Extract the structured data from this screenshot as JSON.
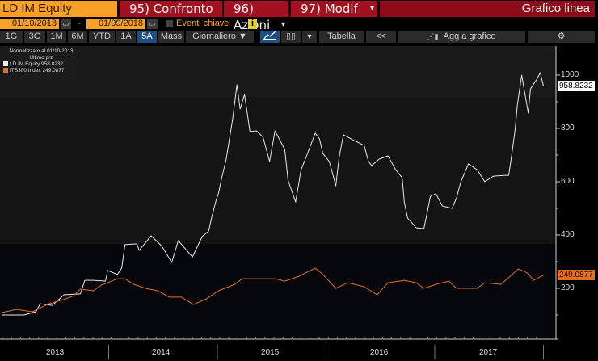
{
  "header": {
    "security": "LD IM Equity",
    "menu": [
      {
        "label": "95) Confronto"
      },
      {
        "label": "96) Azioni",
        "dropdown": true
      },
      {
        "label": "97) Modif",
        "dropdown": true
      }
    ],
    "view_title": "Grafico linea"
  },
  "range": {
    "start": "01/10/2013",
    "end": "01/09/2018",
    "separator": "-",
    "events_label": "Eventi chiave",
    "info": "i"
  },
  "toolbar": {
    "periods": [
      "1G",
      "3G",
      "1M",
      "6M",
      "YTD",
      "1A",
      "5A",
      "Mass"
    ],
    "selected_period": "5A",
    "frequency": "Giornaliero",
    "table": "Tabella",
    "collapse": "<<",
    "add": "Agg a grafico",
    "icons": [
      "line-chart-icon",
      "candlestick-icon",
      "gear-icon"
    ]
  },
  "colors": {
    "accent": "#f7a127",
    "menu_red": "#a3101f",
    "series1": "#e8e8e8",
    "series2": "#e0701f",
    "selected": "#1f4f80"
  },
  "chart_data": {
    "type": "line",
    "legend": {
      "title": "Normalizzato al 01/10/2013",
      "subtitle": "Ultimo prz",
      "placement": "top-left",
      "entries": [
        {
          "name": "LD IM Equity",
          "last": "958.8232"
        },
        {
          "name": "ITS300 Index",
          "last": "249.0877"
        }
      ]
    },
    "yticks": [
      "1000",
      "800",
      "600",
      "400",
      "200"
    ],
    "ylim": [
      0,
      1100
    ],
    "xticks": [
      "2013",
      "2014",
      "2015",
      "2016",
      "2017"
    ],
    "xlim": [
      2013,
      2018.1
    ],
    "series": [
      {
        "name": "LD IM Equity",
        "x": [
          2013.02,
          2013.22,
          2013.33,
          2013.37,
          2013.48,
          2013.59,
          2013.74,
          2013.78,
          2013.86,
          2013.97,
          2013.99,
          2014.08,
          2014.12,
          2014.15,
          2014.26,
          2014.28,
          2014.39,
          2014.49,
          2014.58,
          2014.64,
          2014.77,
          2014.86,
          2014.92,
          2014.95,
          2014.99,
          2015.01,
          2015.04,
          2015.08,
          2015.14,
          2015.18,
          2015.21,
          2015.25,
          2015.3,
          2015.36,
          2015.42,
          2015.48,
          2015.53,
          2015.62,
          2015.65,
          2015.72,
          2015.77,
          2015.83,
          2015.9,
          2015.94,
          2015.97,
          2016.03,
          2016.09,
          2016.12,
          2016.16,
          2016.27,
          2016.35,
          2016.39,
          2016.42,
          2016.49,
          2016.57,
          2016.64,
          2016.7,
          2016.72,
          2016.75,
          2016.83,
          2016.9,
          2016.96,
          2017.01,
          2017.07,
          2017.16,
          2017.2,
          2017.24,
          2017.31,
          2017.39,
          2017.46,
          2017.54,
          2017.65,
          2017.68,
          2017.71,
          2017.74,
          2017.76,
          2017.8,
          2017.86,
          2017.88,
          2017.94,
          2017.97,
          2018.0
        ],
        "values": [
          100,
          100,
          112,
          142,
          136,
          176,
          179,
          230,
          230,
          227,
          267,
          252,
          276,
          364,
          367,
          342,
          397,
          358,
          297,
          379,
          318,
          394,
          415,
          470,
          533,
          555,
          615,
          682,
          833,
          964,
          873,
          927,
          788,
          791,
          767,
          676,
          791,
          721,
          606,
          524,
          645,
          706,
          782,
          761,
          706,
          676,
          585,
          691,
          776,
          752,
          736,
          676,
          661,
          685,
          697,
          645,
          615,
          524,
          464,
          427,
          424,
          545,
          555,
          509,
          500,
          539,
          600,
          667,
          645,
          600,
          621,
          624,
          624,
          706,
          797,
          888,
          1000,
          858,
          948,
          985,
          1009,
          958.8232
        ]
      },
      {
        "name": "ITS300 Index",
        "x": [
          2013.02,
          2013.15,
          2013.3,
          2013.45,
          2013.56,
          2013.67,
          2013.74,
          2013.86,
          2013.93,
          2013.99,
          2014.08,
          2014.15,
          2014.23,
          2014.34,
          2014.45,
          2014.56,
          2014.67,
          2014.78,
          2014.9,
          2015.01,
          2015.16,
          2015.23,
          2015.38,
          2015.53,
          2015.62,
          2015.75,
          2015.9,
          2015.97,
          2016.09,
          2016.2,
          2016.35,
          2016.47,
          2016.57,
          2016.72,
          2016.83,
          2016.9,
          2017.01,
          2017.13,
          2017.2,
          2017.39,
          2017.46,
          2017.61,
          2017.77,
          2017.85,
          2017.91,
          2017.98,
          2018.0
        ],
        "values": [
          109,
          121,
          112,
          142,
          155,
          170,
          197,
          191,
          212,
          221,
          236,
          236,
          215,
          200,
          191,
          167,
          167,
          139,
          161,
          191,
          215,
          236,
          236,
          236,
          227,
          245,
          276,
          252,
          200,
          221,
          206,
          176,
          221,
          230,
          221,
          200,
          215,
          227,
          200,
          200,
          221,
          215,
          273,
          258,
          230,
          245,
          249.0877
        ]
      }
    ]
  }
}
